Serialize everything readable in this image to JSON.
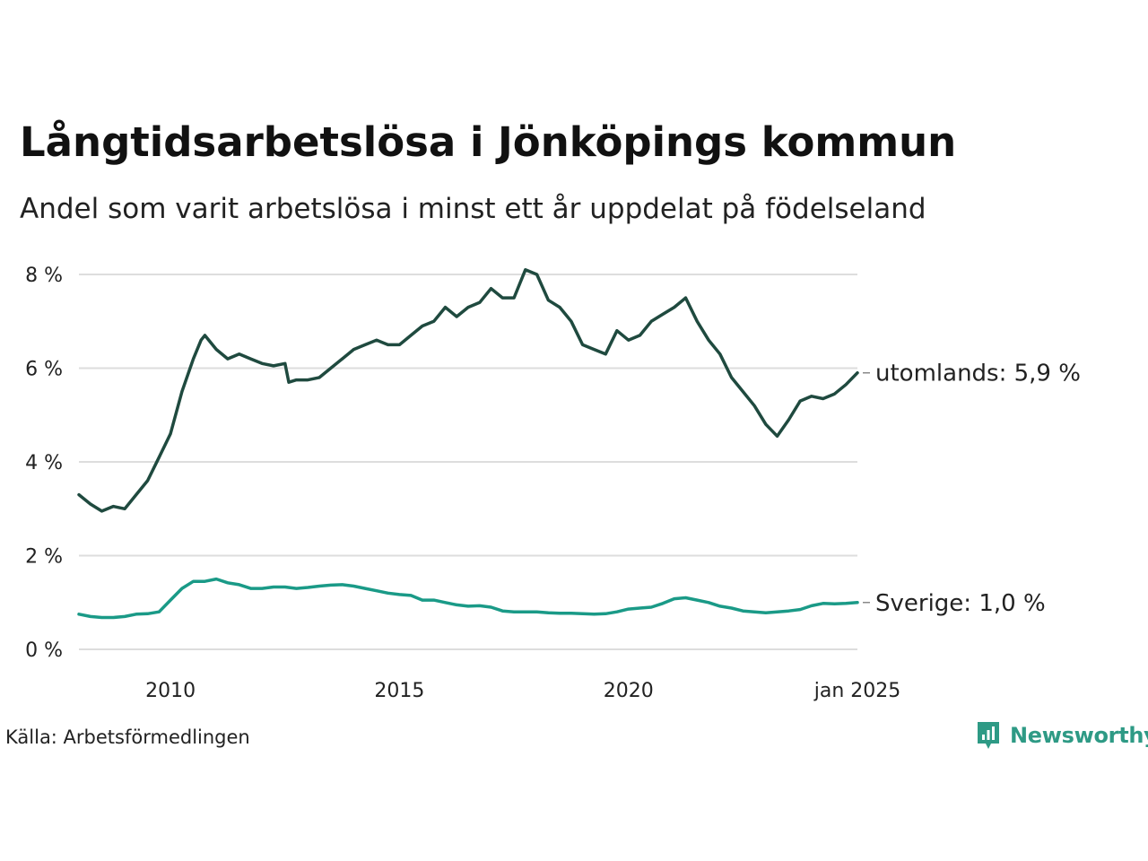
{
  "title": "Långtidsarbetslösa i Jönköpings kommun",
  "subtitle": "Andel som varit arbetslösa i minst ett år uppdelat på födelseland",
  "source": "Källa: Arbetsförmedlingen",
  "brand": {
    "name": "Newsworthy",
    "icon": "newsworthy-logo-icon",
    "color": "#2e9a85"
  },
  "chart_data": {
    "type": "line",
    "x_range": [
      "2008-01",
      "2025-01"
    ],
    "y_range": [
      0,
      8
    ],
    "y_unit": "%",
    "grid": true,
    "y_ticks": [
      {
        "value": 0,
        "label": "0 %"
      },
      {
        "value": 2,
        "label": "2 %"
      },
      {
        "value": 4,
        "label": "4 %"
      },
      {
        "value": 6,
        "label": "6 %"
      },
      {
        "value": 8,
        "label": "8 %"
      }
    ],
    "x_ticks": [
      {
        "value": "2010-01",
        "label": "2010"
      },
      {
        "value": "2015-01",
        "label": "2015"
      },
      {
        "value": "2020-01",
        "label": "2020"
      },
      {
        "value": "2025-01",
        "label": "jan 2025"
      }
    ],
    "series": [
      {
        "name": "utomlands",
        "end_label": "utomlands: 5,9 %",
        "color": "#1f4a3f",
        "points": [
          [
            "2008-01",
            3.3
          ],
          [
            "2008-04",
            3.1
          ],
          [
            "2008-07",
            2.95
          ],
          [
            "2008-10",
            3.05
          ],
          [
            "2009-01",
            3.0
          ],
          [
            "2009-04",
            3.3
          ],
          [
            "2009-07",
            3.6
          ],
          [
            "2009-10",
            4.1
          ],
          [
            "2010-01",
            4.6
          ],
          [
            "2010-04",
            5.5
          ],
          [
            "2010-07",
            6.2
          ],
          [
            "2010-09",
            6.6
          ],
          [
            "2010-10",
            6.7
          ],
          [
            "2011-01",
            6.4
          ],
          [
            "2011-04",
            6.2
          ],
          [
            "2011-07",
            6.3
          ],
          [
            "2011-10",
            6.2
          ],
          [
            "2012-01",
            6.1
          ],
          [
            "2012-04",
            6.05
          ],
          [
            "2012-07",
            6.1
          ],
          [
            "2012-08",
            5.7
          ],
          [
            "2012-10",
            5.75
          ],
          [
            "2013-01",
            5.75
          ],
          [
            "2013-04",
            5.8
          ],
          [
            "2013-07",
            6.0
          ],
          [
            "2013-10",
            6.2
          ],
          [
            "2014-01",
            6.4
          ],
          [
            "2014-04",
            6.5
          ],
          [
            "2014-07",
            6.6
          ],
          [
            "2014-10",
            6.5
          ],
          [
            "2015-01",
            6.5
          ],
          [
            "2015-04",
            6.7
          ],
          [
            "2015-07",
            6.9
          ],
          [
            "2015-10",
            7.0
          ],
          [
            "2016-01",
            7.3
          ],
          [
            "2016-04",
            7.1
          ],
          [
            "2016-07",
            7.3
          ],
          [
            "2016-10",
            7.4
          ],
          [
            "2017-01",
            7.7
          ],
          [
            "2017-04",
            7.5
          ],
          [
            "2017-07",
            7.5
          ],
          [
            "2017-10",
            8.1
          ],
          [
            "2018-01",
            8.0
          ],
          [
            "2018-04",
            7.45
          ],
          [
            "2018-07",
            7.3
          ],
          [
            "2018-10",
            7.0
          ],
          [
            "2019-01",
            6.5
          ],
          [
            "2019-04",
            6.4
          ],
          [
            "2019-07",
            6.3
          ],
          [
            "2019-10",
            6.8
          ],
          [
            "2020-01",
            6.6
          ],
          [
            "2020-04",
            6.7
          ],
          [
            "2020-07",
            7.0
          ],
          [
            "2020-10",
            7.15
          ],
          [
            "2021-01",
            7.3
          ],
          [
            "2021-04",
            7.5
          ],
          [
            "2021-07",
            7.0
          ],
          [
            "2021-10",
            6.6
          ],
          [
            "2022-01",
            6.3
          ],
          [
            "2022-04",
            5.8
          ],
          [
            "2022-07",
            5.5
          ],
          [
            "2022-10",
            5.2
          ],
          [
            "2023-01",
            4.8
          ],
          [
            "2023-04",
            4.55
          ],
          [
            "2023-07",
            4.9
          ],
          [
            "2023-10",
            5.3
          ],
          [
            "2024-01",
            5.4
          ],
          [
            "2024-04",
            5.35
          ],
          [
            "2024-07",
            5.45
          ],
          [
            "2024-10",
            5.65
          ],
          [
            "2025-01",
            5.9
          ]
        ]
      },
      {
        "name": "Sverige",
        "end_label": "Sverige: 1,0 %",
        "color": "#1a9a87",
        "points": [
          [
            "2008-01",
            0.75
          ],
          [
            "2008-04",
            0.7
          ],
          [
            "2008-07",
            0.68
          ],
          [
            "2008-10",
            0.68
          ],
          [
            "2009-01",
            0.7
          ],
          [
            "2009-04",
            0.75
          ],
          [
            "2009-07",
            0.76
          ],
          [
            "2009-10",
            0.8
          ],
          [
            "2010-01",
            1.05
          ],
          [
            "2010-04",
            1.3
          ],
          [
            "2010-07",
            1.45
          ],
          [
            "2010-10",
            1.45
          ],
          [
            "2011-01",
            1.5
          ],
          [
            "2011-04",
            1.42
          ],
          [
            "2011-07",
            1.38
          ],
          [
            "2011-10",
            1.3
          ],
          [
            "2012-01",
            1.3
          ],
          [
            "2012-04",
            1.33
          ],
          [
            "2012-07",
            1.33
          ],
          [
            "2012-10",
            1.3
          ],
          [
            "2013-01",
            1.32
          ],
          [
            "2013-04",
            1.35
          ],
          [
            "2013-07",
            1.37
          ],
          [
            "2013-10",
            1.38
          ],
          [
            "2014-01",
            1.35
          ],
          [
            "2014-04",
            1.3
          ],
          [
            "2014-07",
            1.25
          ],
          [
            "2014-10",
            1.2
          ],
          [
            "2015-01",
            1.17
          ],
          [
            "2015-04",
            1.15
          ],
          [
            "2015-07",
            1.05
          ],
          [
            "2015-10",
            1.05
          ],
          [
            "2016-01",
            1.0
          ],
          [
            "2016-04",
            0.95
          ],
          [
            "2016-07",
            0.92
          ],
          [
            "2016-10",
            0.93
          ],
          [
            "2017-01",
            0.9
          ],
          [
            "2017-04",
            0.82
          ],
          [
            "2017-07",
            0.8
          ],
          [
            "2017-10",
            0.8
          ],
          [
            "2018-01",
            0.8
          ],
          [
            "2018-04",
            0.78
          ],
          [
            "2018-07",
            0.77
          ],
          [
            "2018-10",
            0.77
          ],
          [
            "2019-01",
            0.76
          ],
          [
            "2019-04",
            0.75
          ],
          [
            "2019-07",
            0.76
          ],
          [
            "2019-10",
            0.8
          ],
          [
            "2020-01",
            0.86
          ],
          [
            "2020-04",
            0.88
          ],
          [
            "2020-07",
            0.9
          ],
          [
            "2020-10",
            0.98
          ],
          [
            "2021-01",
            1.08
          ],
          [
            "2021-04",
            1.1
          ],
          [
            "2021-07",
            1.05
          ],
          [
            "2021-10",
            1.0
          ],
          [
            "2022-01",
            0.92
          ],
          [
            "2022-04",
            0.88
          ],
          [
            "2022-07",
            0.82
          ],
          [
            "2022-10",
            0.8
          ],
          [
            "2023-01",
            0.78
          ],
          [
            "2023-04",
            0.8
          ],
          [
            "2023-07",
            0.82
          ],
          [
            "2023-10",
            0.85
          ],
          [
            "2024-01",
            0.93
          ],
          [
            "2024-04",
            0.98
          ],
          [
            "2024-07",
            0.97
          ],
          [
            "2024-10",
            0.98
          ],
          [
            "2025-01",
            1.0
          ]
        ]
      }
    ]
  }
}
